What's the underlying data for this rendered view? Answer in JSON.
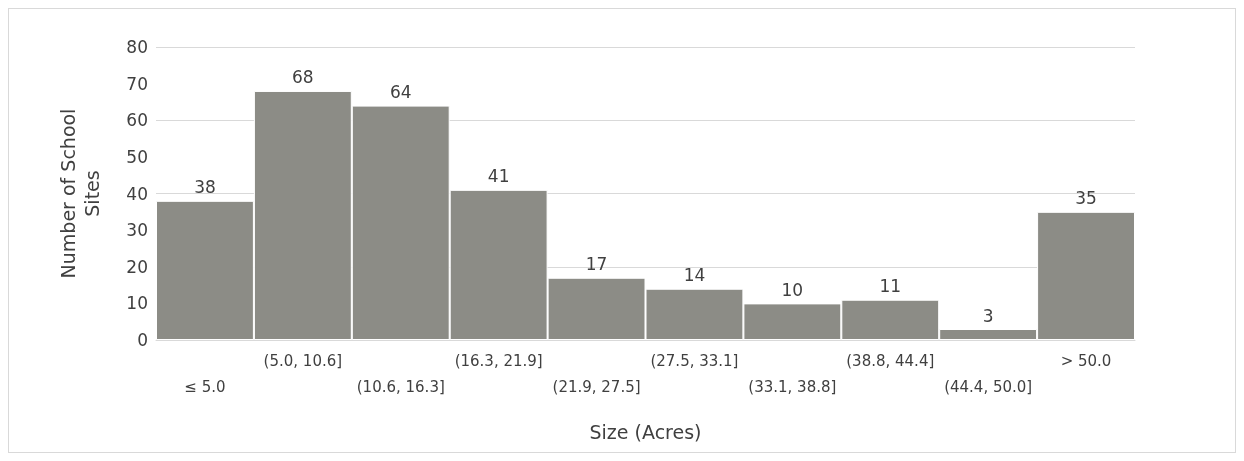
{
  "chart_data": {
    "type": "bar",
    "xlabel": "Size (Acres)",
    "ylabel": "Number of School Sites",
    "categories": [
      "≤ 5.0",
      "(5.0, 10.6]",
      "(10.6, 16.3]",
      "(16.3, 21.9]",
      "(21.9, 27.5]",
      "(27.5, 33.1]",
      "(33.1, 38.8]",
      "(38.8, 44.4]",
      "(44.4, 50.0]",
      "> 50.0"
    ],
    "values": [
      38,
      68,
      64,
      41,
      17,
      14,
      10,
      11,
      3,
      35
    ],
    "color": "#8c8c86",
    "ylim": [
      0,
      80
    ],
    "yticks": [
      0,
      10,
      20,
      30,
      40,
      50,
      60,
      70,
      80
    ],
    "grid": "y",
    "data_labels": true
  }
}
